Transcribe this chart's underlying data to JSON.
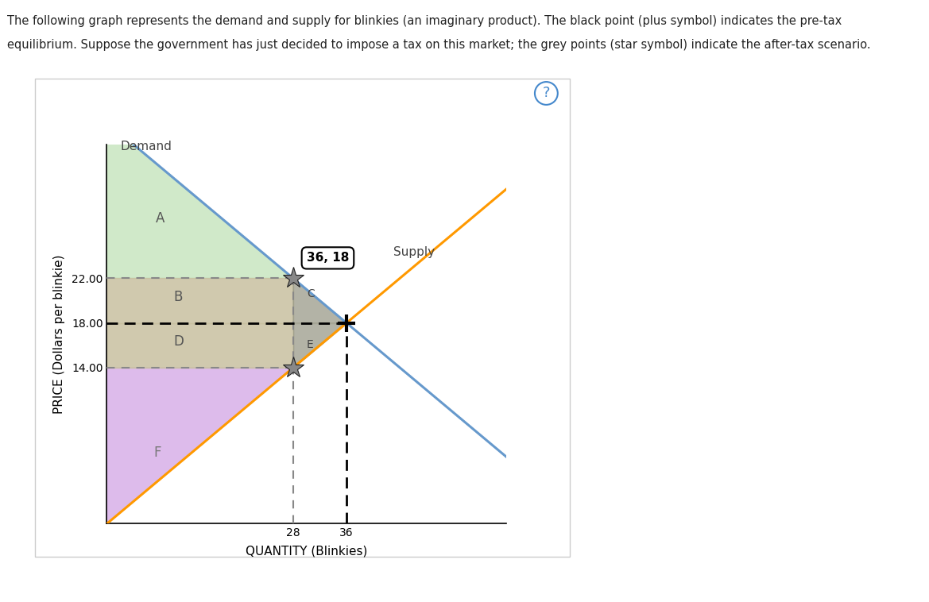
{
  "xlabel": "QUANTITY (Blinkies)",
  "ylabel": "PRICE (Dollars per blinkie)",
  "demand_label": "Demand",
  "supply_label": "Supply",
  "demand_color": "#6699cc",
  "supply_color": "#ff9900",
  "pretax_eq": [
    36,
    18
  ],
  "aftertax_points": [
    [
      28,
      22
    ],
    [
      28,
      14
    ]
  ],
  "ytick_vals": [
    14.0,
    18.0,
    22.0
  ],
  "ytick_labels": [
    "14.00",
    "18.00",
    "22.00"
  ],
  "xtick_vals": [
    28,
    36
  ],
  "xtick_labels": [
    "28",
    "36"
  ],
  "xlim": [
    0,
    60
  ],
  "ylim": [
    0,
    34
  ],
  "demand_slope": -0.5,
  "demand_intercept": 36,
  "supply_slope": 0.5,
  "supply_intercept": 0,
  "region_A_color": "#c8e6c0",
  "region_B_color": "#c8c0a0",
  "region_C_color": "#9a9a88",
  "region_D_color": "#c8c0a0",
  "region_E_color": "#9a9a88",
  "region_F_color": "#d8b0e8",
  "label_A": "A",
  "label_B": "B",
  "label_C": "C",
  "label_D": "D",
  "label_E": "E",
  "label_F": "F",
  "annotation_text": "36, 18",
  "fig_width": 11.69,
  "fig_height": 7.58,
  "dpi": 100,
  "outer_bg": "#ffffff",
  "tan_border_color": "#c8b870",
  "question_mark_color": "#4488cc",
  "line1": "The following graph represents the demand and supply for blinkies (an imaginary product). The black point (plus symbol) indicates the pre-tax",
  "line2": "equilibrium. Suppose the government has just decided to impose a tax on this market; the grey points (star symbol) indicate the after-tax scenario."
}
